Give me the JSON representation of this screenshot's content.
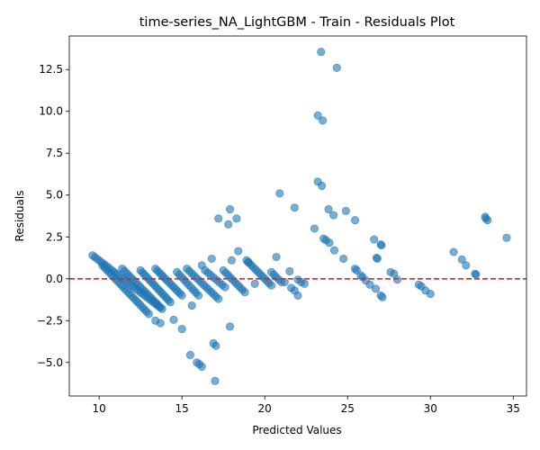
{
  "chart_data": {
    "type": "scatter",
    "title": "time-series_NA_LightGBM - Train - Residuals Plot",
    "xlabel": "Predicted Values",
    "ylabel": "Residuals",
    "xlim": [
      8.2,
      35.8
    ],
    "ylim": [
      -7.0,
      14.5
    ],
    "xticks": [
      10,
      15,
      20,
      25,
      30,
      35
    ],
    "yticks": [
      -5.0,
      -2.5,
      0.0,
      2.5,
      5.0,
      7.5,
      10.0,
      12.5
    ],
    "xtick_labels": [
      "10",
      "15",
      "20",
      "25",
      "30",
      "35"
    ],
    "ytick_labels": [
      "−5.0",
      "−2.5",
      "0.0",
      "2.5",
      "5.0",
      "7.5",
      "10.0",
      "12.5"
    ],
    "grid": false,
    "legend": "none",
    "reference_line": {
      "y": 0,
      "style": "dashed",
      "color": "#d62728"
    },
    "point_color": "#1f77b4",
    "point_alpha": 0.6,
    "bands": [
      {
        "x0": 9.6,
        "y0": 1.4,
        "x1": 13.8,
        "y1": -1.8,
        "n": 30
      },
      {
        "x0": 10.2,
        "y0": 0.8,
        "x1": 13.0,
        "y1": -2.1,
        "n": 22
      },
      {
        "x0": 11.4,
        "y0": 0.6,
        "x1": 13.7,
        "y1": -1.7,
        "n": 18
      },
      {
        "x0": 12.5,
        "y0": 0.5,
        "x1": 14.3,
        "y1": -1.4,
        "n": 16
      },
      {
        "x0": 13.4,
        "y0": 0.6,
        "x1": 15.0,
        "y1": -1.0,
        "n": 14
      },
      {
        "x0": 14.7,
        "y0": 0.4,
        "x1": 16.0,
        "y1": -1.0,
        "n": 10
      },
      {
        "x0": 15.3,
        "y0": 0.6,
        "x1": 17.2,
        "y1": -1.2,
        "n": 14
      },
      {
        "x0": 16.4,
        "y0": 0.5,
        "x1": 17.6,
        "y1": -0.5,
        "n": 8
      },
      {
        "x0": 17.5,
        "y0": 0.5,
        "x1": 18.8,
        "y1": -0.8,
        "n": 10
      },
      {
        "x0": 18.9,
        "y0": 1.1,
        "x1": 20.4,
        "y1": -0.4,
        "n": 12
      },
      {
        "x0": 20.4,
        "y0": 0.4,
        "x1": 21.0,
        "y1": -0.2,
        "n": 5
      }
    ],
    "points": [
      [
        13.4,
        -2.5
      ],
      [
        13.7,
        -2.65
      ],
      [
        14.5,
        -2.45
      ],
      [
        15.0,
        -3.0
      ],
      [
        15.6,
        -1.6
      ],
      [
        16.2,
        0.8
      ],
      [
        16.8,
        1.2
      ],
      [
        17.2,
        3.6
      ],
      [
        17.8,
        3.25
      ],
      [
        17.9,
        4.15
      ],
      [
        18.3,
        3.6
      ],
      [
        18.0,
        1.1
      ],
      [
        18.4,
        1.65
      ],
      [
        17.9,
        -2.85
      ],
      [
        16.9,
        -3.85
      ],
      [
        17.05,
        -4.0
      ],
      [
        15.5,
        -4.55
      ],
      [
        15.9,
        -5.0
      ],
      [
        16.05,
        -5.1
      ],
      [
        16.2,
        -5.25
      ],
      [
        17.0,
        -6.1
      ],
      [
        19.0,
        1.0
      ],
      [
        19.4,
        -0.3
      ],
      [
        20.7,
        1.3
      ],
      [
        20.9,
        5.1
      ],
      [
        21.2,
        -0.2
      ],
      [
        21.5,
        0.45
      ],
      [
        21.8,
        4.25
      ],
      [
        21.6,
        -0.55
      ],
      [
        21.8,
        -0.7
      ],
      [
        22.0,
        -1.0
      ],
      [
        22.0,
        -0.05
      ],
      [
        22.2,
        -0.2
      ],
      [
        22.4,
        -0.3
      ],
      [
        23.0,
        3.0
      ],
      [
        23.2,
        5.8
      ],
      [
        23.45,
        5.55
      ],
      [
        23.2,
        9.75
      ],
      [
        23.5,
        9.45
      ],
      [
        23.4,
        13.55
      ],
      [
        24.35,
        12.6
      ],
      [
        23.55,
        2.4
      ],
      [
        23.7,
        2.3
      ],
      [
        23.9,
        2.15
      ],
      [
        23.85,
        4.15
      ],
      [
        24.15,
        3.8
      ],
      [
        24.2,
        1.7
      ],
      [
        24.75,
        1.2
      ],
      [
        24.9,
        4.05
      ],
      [
        25.45,
        3.5
      ],
      [
        25.45,
        0.6
      ],
      [
        25.55,
        0.5
      ],
      [
        25.8,
        0.2
      ],
      [
        25.9,
        0.1
      ],
      [
        26.1,
        -0.1
      ],
      [
        26.35,
        -0.35
      ],
      [
        26.6,
        2.35
      ],
      [
        26.7,
        -0.6
      ],
      [
        26.75,
        1.25
      ],
      [
        26.8,
        1.2
      ],
      [
        27.0,
        2.05
      ],
      [
        27.05,
        2.0
      ],
      [
        27.0,
        -1.0
      ],
      [
        27.1,
        -1.1
      ],
      [
        27.6,
        0.4
      ],
      [
        27.8,
        0.3
      ],
      [
        28.0,
        -0.05
      ],
      [
        29.3,
        -0.35
      ],
      [
        29.45,
        -0.45
      ],
      [
        29.7,
        -0.7
      ],
      [
        30.0,
        -0.9
      ],
      [
        31.4,
        1.6
      ],
      [
        31.9,
        1.15
      ],
      [
        32.15,
        0.8
      ],
      [
        32.7,
        0.3
      ],
      [
        32.75,
        0.25
      ],
      [
        33.3,
        3.7
      ],
      [
        33.35,
        3.6
      ],
      [
        33.45,
        3.5
      ],
      [
        34.6,
        2.45
      ]
    ]
  }
}
